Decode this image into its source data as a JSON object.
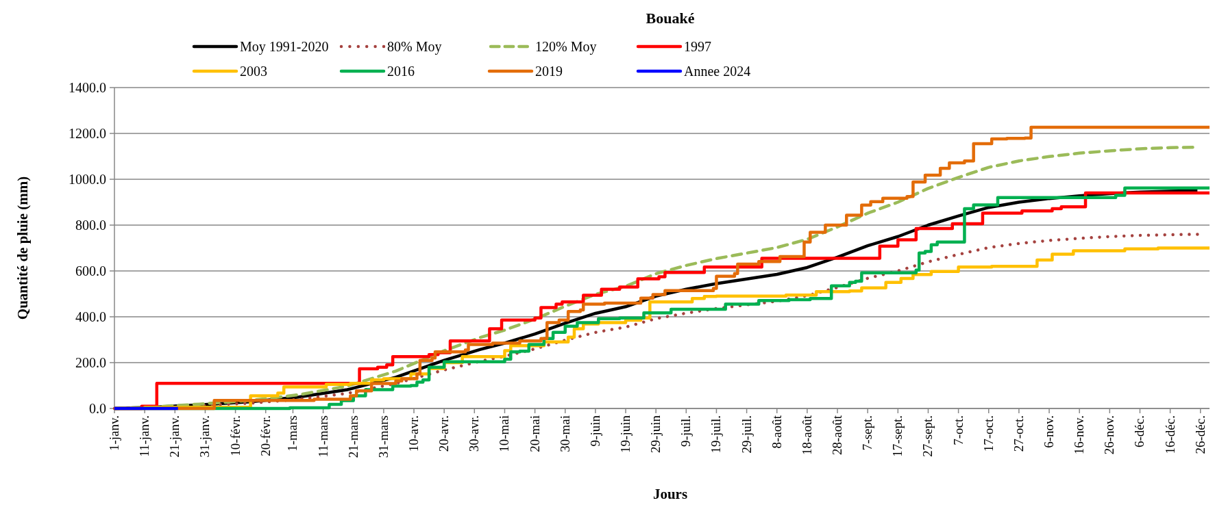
{
  "chart_data": {
    "type": "line",
    "title": "Bouaké",
    "xlabel": "Jours",
    "ylabel": "Quantité de pluie (mm)",
    "xlim": [
      "--01-01",
      "--12-29"
    ],
    "ylim": [
      0,
      1400
    ],
    "xticks": [
      {
        "value": "--01-01",
        "label": "1-janv."
      },
      {
        "value": "--01-11",
        "label": "11-janv."
      },
      {
        "value": "--01-21",
        "label": "21-janv."
      },
      {
        "value": "--01-31",
        "label": "31-janv."
      },
      {
        "value": "--02-10",
        "label": "10-févr."
      },
      {
        "value": "--02-20",
        "label": "20-févr."
      },
      {
        "value": "--03-01",
        "label": "1-mars"
      },
      {
        "value": "--03-11",
        "label": "11-mars"
      },
      {
        "value": "--03-21",
        "label": "21-mars"
      },
      {
        "value": "--03-31",
        "label": "31-mars"
      },
      {
        "value": "--04-10",
        "label": "10-avr."
      },
      {
        "value": "--04-20",
        "label": "20-avr."
      },
      {
        "value": "--04-30",
        "label": "30-avr."
      },
      {
        "value": "--05-10",
        "label": "10-mai"
      },
      {
        "value": "--05-20",
        "label": "20-mai"
      },
      {
        "value": "--05-30",
        "label": "30-mai"
      },
      {
        "value": "--06-09",
        "label": "9-juin"
      },
      {
        "value": "--06-19",
        "label": "19-juin"
      },
      {
        "value": "--06-29",
        "label": "29-juin"
      },
      {
        "value": "--07-09",
        "label": "9-juil."
      },
      {
        "value": "--07-19",
        "label": "19-juil."
      },
      {
        "value": "--07-29",
        "label": "29-juil."
      },
      {
        "value": "--08-08",
        "label": "8-août"
      },
      {
        "value": "--08-18",
        "label": "18-août"
      },
      {
        "value": "--08-28",
        "label": "28-août"
      },
      {
        "value": "--09-07",
        "label": "7-sept."
      },
      {
        "value": "--09-17",
        "label": "17-sept."
      },
      {
        "value": "--09-27",
        "label": "27-sept."
      },
      {
        "value": "--10-07",
        "label": "7-oct."
      },
      {
        "value": "--10-17",
        "label": "17-oct."
      },
      {
        "value": "--10-27",
        "label": "27-oct."
      },
      {
        "value": "--11-06",
        "label": "6-nov."
      },
      {
        "value": "--11-16",
        "label": "16-nov."
      },
      {
        "value": "--11-26",
        "label": "26-nov."
      },
      {
        "value": "--12-06",
        "label": "6-déc."
      },
      {
        "value": "--12-16",
        "label": "16-déc."
      },
      {
        "value": "--12-26",
        "label": "26-déc."
      }
    ],
    "yticks": [
      {
        "value": 0,
        "label": "0.0"
      },
      {
        "value": 200,
        "label": "200.0"
      },
      {
        "value": 400,
        "label": "400.0"
      },
      {
        "value": 600,
        "label": "600.0"
      },
      {
        "value": 800,
        "label": "800.0"
      },
      {
        "value": 1000,
        "label": "1000.0"
      },
      {
        "value": 1200,
        "label": "1200.0"
      },
      {
        "value": 1400,
        "label": "1400.0"
      }
    ],
    "grid": "y",
    "legend": "top",
    "series": [
      {
        "name": "Moy 1991-2020",
        "color": "#000000",
        "line_style": "solid",
        "x": [
          "--01-01",
          "--01-13",
          "--01-29",
          "--02-15",
          "--03-03",
          "--03-19",
          "--04-04",
          "--04-20",
          "--05-02",
          "--05-10",
          "--05-20",
          "--05-30",
          "--06-09",
          "--06-19",
          "--06-29",
          "--07-09",
          "--07-19",
          "--07-29",
          "--08-08",
          "--08-18",
          "--08-28",
          "--09-07",
          "--09-17",
          "--09-27",
          "--10-07",
          "--10-17",
          "--10-27",
          "--11-06",
          "--11-16",
          "--11-26",
          "--12-06",
          "--12-16",
          "--12-25"
        ],
        "values": [
          0,
          5,
          16,
          29,
          50,
          82,
          136,
          210,
          258,
          285,
          325,
          372,
          415,
          444,
          490,
          520,
          545,
          565,
          585,
          615,
          660,
          710,
          750,
          800,
          840,
          877,
          900,
          916,
          928,
          937,
          944,
          948,
          950
        ]
      },
      {
        "name": "80% Moy",
        "color": "#a5423f",
        "line_style": "dotted",
        "x": [
          "--01-01",
          "--01-13",
          "--01-29",
          "--02-15",
          "--03-03",
          "--03-19",
          "--04-04",
          "--04-20",
          "--05-02",
          "--05-10",
          "--05-20",
          "--05-30",
          "--06-09",
          "--06-19",
          "--06-29",
          "--07-09",
          "--07-19",
          "--07-29",
          "--08-08",
          "--08-18",
          "--08-28",
          "--09-07",
          "--09-17",
          "--09-27",
          "--10-07",
          "--10-17",
          "--10-27",
          "--11-06",
          "--11-16",
          "--11-26",
          "--12-06",
          "--12-16",
          "--12-25"
        ],
        "values": [
          0,
          4,
          13,
          23,
          40,
          66,
          109,
          168,
          206,
          228,
          260,
          298,
          332,
          355,
          392,
          416,
          436,
          452,
          468,
          492,
          528,
          568,
          600,
          640,
          672,
          702,
          720,
          733,
          742,
          750,
          755,
          758,
          760
        ]
      },
      {
        "name": "120% Moy",
        "color": "#9bbb59",
        "line_style": "dashed",
        "x": [
          "--01-01",
          "--01-13",
          "--01-29",
          "--02-15",
          "--03-03",
          "--03-19",
          "--04-04",
          "--04-20",
          "--05-02",
          "--05-10",
          "--05-20",
          "--05-30",
          "--06-09",
          "--06-19",
          "--06-29",
          "--07-09",
          "--07-19",
          "--07-29",
          "--08-08",
          "--08-18",
          "--08-28",
          "--09-07",
          "--09-17",
          "--09-27",
          "--10-07",
          "--10-17",
          "--10-27",
          "--11-06",
          "--11-16",
          "--11-26",
          "--12-06",
          "--12-16",
          "--12-25"
        ],
        "values": [
          0,
          6,
          19,
          35,
          60,
          98,
          163,
          252,
          310,
          342,
          390,
          446,
          498,
          533,
          588,
          624,
          654,
          678,
          702,
          738,
          792,
          852,
          900,
          960,
          1008,
          1052,
          1080,
          1099,
          1114,
          1124,
          1133,
          1138,
          1140
        ]
      },
      {
        "name": "1997",
        "color": "#ff0000",
        "type": "step",
        "line_style": "solid",
        "x": [
          "--01-01",
          "--01-10",
          "--01-15",
          "--03-23",
          "--03-29",
          "--04-01",
          "--04-03",
          "--04-15",
          "--04-18",
          "--04-22",
          "--05-05",
          "--05-09",
          "--05-20",
          "--05-22",
          "--05-27",
          "--05-29",
          "--06-05",
          "--06-11",
          "--06-17",
          "--06-23",
          "--06-30",
          "--07-02",
          "--07-15",
          "--08-03",
          "--09-11",
          "--09-17",
          "--09-23",
          "--10-05",
          "--10-15",
          "--10-28",
          "--11-07",
          "--11-10",
          "--11-18",
          "--12-29"
        ],
        "values": [
          0,
          10,
          110,
          173,
          180,
          190,
          226,
          235,
          243,
          295,
          348,
          386,
          395,
          440,
          455,
          465,
          494,
          520,
          530,
          566,
          575,
          593,
          617,
          655,
          708,
          736,
          785,
          806,
          852,
          862,
          872,
          880,
          940,
          940
        ]
      },
      {
        "name": "2003",
        "color": "#ffc000",
        "type": "step",
        "line_style": "solid",
        "x": [
          "--01-01",
          "--01-11",
          "--02-15",
          "--02-24",
          "--02-26",
          "--03-12",
          "--03-20",
          "--03-27",
          "--03-31",
          "--04-09",
          "--04-15",
          "--04-20",
          "--04-26",
          "--05-10",
          "--05-12",
          "--05-23",
          "--05-31",
          "--06-02",
          "--06-05",
          "--06-10",
          "--06-19",
          "--06-24",
          "--06-27",
          "--07-11",
          "--07-15",
          "--07-19",
          "--08-11",
          "--08-21",
          "--09-01",
          "--09-05",
          "--09-13",
          "--09-18",
          "--09-22",
          "--09-28",
          "--10-07",
          "--10-18",
          "--11-02",
          "--11-07",
          "--11-14",
          "--12-01",
          "--12-12",
          "--12-29"
        ],
        "values": [
          0,
          5,
          55,
          67,
          94,
          105,
          110,
          125,
          130,
          151,
          175,
          200,
          226,
          252,
          274,
          290,
          311,
          348,
          369,
          375,
          385,
          395,
          465,
          480,
          489,
          490,
          495,
          510,
          513,
          526,
          550,
          567,
          584,
          598,
          617,
          620,
          648,
          673,
          688,
          696,
          700,
          700
        ]
      },
      {
        "name": "2016",
        "color": "#00b050",
        "type": "step",
        "line_style": "solid",
        "x": [
          "--01-01",
          "--02-28",
          "--03-13",
          "--03-17",
          "--03-21",
          "--03-25",
          "--04-03",
          "--04-09",
          "--04-11",
          "--04-13",
          "--04-15",
          "--04-20",
          "--05-10",
          "--05-12",
          "--05-15",
          "--05-18",
          "--05-23",
          "--05-26",
          "--05-30",
          "--06-03",
          "--06-10",
          "--06-17",
          "--06-25",
          "--07-04",
          "--07-22",
          "--08-02",
          "--08-12",
          "--08-19",
          "--08-26",
          "--09-01",
          "--09-03",
          "--09-05",
          "--09-23",
          "--09-24",
          "--09-26",
          "--09-28",
          "--09-30",
          "--10-09",
          "--10-12",
          "--10-20",
          "--11-28",
          "--12-01",
          "--12-29"
        ],
        "values": [
          0,
          3,
          18,
          34,
          55,
          82,
          98,
          100,
          115,
          125,
          180,
          204,
          215,
          247,
          250,
          279,
          305,
          332,
          359,
          375,
          392,
          395,
          417,
          433,
          455,
          471,
          475,
          480,
          535,
          550,
          555,
          592,
          604,
          678,
          685,
          714,
          726,
          872,
          888,
          920,
          930,
          962,
          962
        ]
      },
      {
        "name": "2019",
        "color": "#e36c09",
        "type": "step",
        "line_style": "solid",
        "x": [
          "--01-01",
          "--02-03",
          "--03-08",
          "--03-20",
          "--03-22",
          "--03-27",
          "--04-04",
          "--04-06",
          "--04-11",
          "--04-12",
          "--04-16",
          "--04-17",
          "--04-27",
          "--04-28",
          "--05-06",
          "--05-15",
          "--05-22",
          "--05-24",
          "--05-28",
          "--05-31",
          "--06-04",
          "--06-05",
          "--06-12",
          "--06-24",
          "--06-28",
          "--07-02",
          "--07-18",
          "--07-19",
          "--07-25",
          "--07-26",
          "--08-02",
          "--08-09",
          "--08-17",
          "--08-19",
          "--08-24",
          "--08-31",
          "--09-05",
          "--09-08",
          "--09-12",
          "--09-20",
          "--09-22",
          "--09-26",
          "--10-01",
          "--10-04",
          "--10-09",
          "--10-12",
          "--10-18",
          "--10-23",
          "--10-29",
          "--10-31",
          "--12-29"
        ],
        "values": [
          0,
          35,
          40,
          55,
          77,
          109,
          120,
          130,
          151,
          210,
          220,
          247,
          255,
          279,
          285,
          295,
          305,
          375,
          386,
          423,
          430,
          455,
          460,
          481,
          497,
          514,
          524,
          577,
          589,
          630,
          641,
          663,
          726,
          769,
          800,
          843,
          887,
          902,
          917,
          925,
          988,
          1018,
          1048,
          1072,
          1080,
          1155,
          1176,
          1178,
          1180,
          1227,
          1227
        ]
      },
      {
        "name": "Annee 2024",
        "color": "#0000ff",
        "line_style": "solid",
        "x": [
          "--01-01",
          "--01-22"
        ],
        "values": [
          0,
          0
        ]
      }
    ]
  }
}
